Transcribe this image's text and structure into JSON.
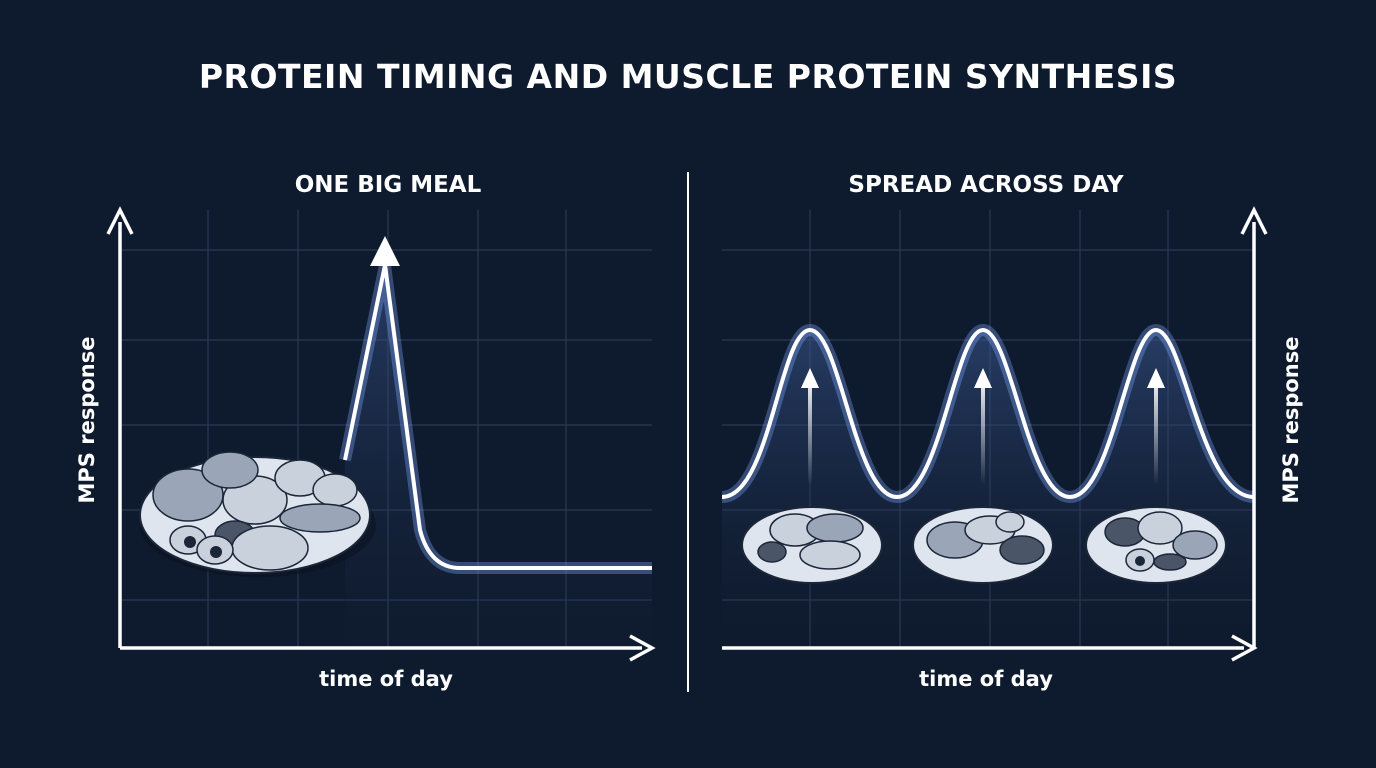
{
  "title": "PROTEIN TIMING AND MUSCLE PROTEIN SYNTHESIS",
  "panels": [
    {
      "title": "ONE BIG MEAL",
      "y_label": "MPS response",
      "x_label": "time of day"
    },
    {
      "title": "SPREAD ACROSS DAY",
      "y_label": "MPS response",
      "x_label": "time of day"
    }
  ]
}
